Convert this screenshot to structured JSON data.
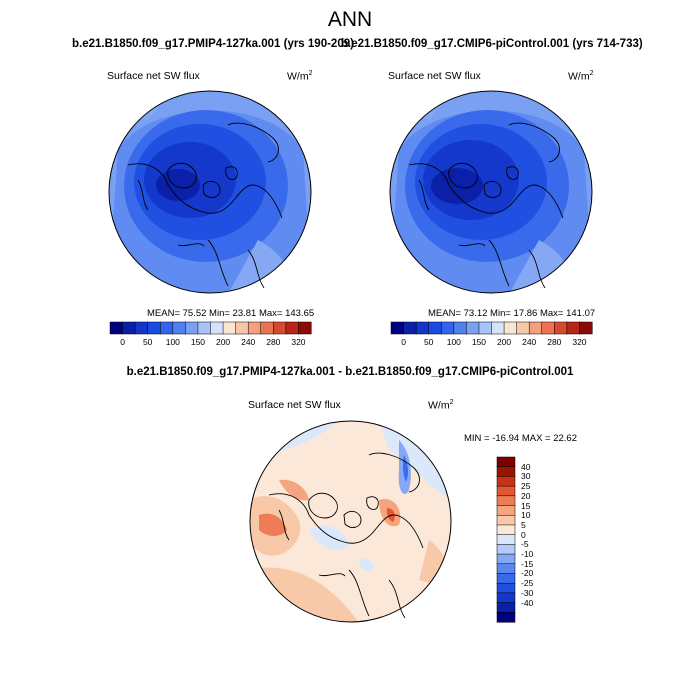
{
  "page": {
    "title": "ANN"
  },
  "panels": {
    "left": {
      "case": "b.e21.B1850.f09_g17.PMIP4-127ka.001 (yrs 190-209)",
      "variable": "Surface net SW flux",
      "units": "W/m",
      "units_sup": "2",
      "stats": "MEAN=  75.52  Min=  23.81  Max= 143.65"
    },
    "right": {
      "case": "b.e21.B1850.f09_g17.CMIP6-piControl.001 (yrs 714-733)",
      "variable": "Surface net SW flux",
      "units": "W/m",
      "units_sup": "2",
      "stats": "MEAN=  73.12  Min=  17.86  Max= 141.07"
    },
    "diff": {
      "case": "b.e21.B1850.f09_g17.PMIP4-127ka.001 - b.e21.B1850.f09_g17.CMIP6-piControl.001",
      "variable": "Surface net SW flux",
      "units": "W/m",
      "units_sup": "2",
      "stats": "MIN = -16.94 MAX =  22.62"
    }
  },
  "colorbars": {
    "abs": {
      "colors": [
        "#000080",
        "#0a1fa8",
        "#1235cc",
        "#1a4be0",
        "#3264ec",
        "#5080f0",
        "#7aa0f4",
        "#a6c2f8",
        "#d4e2fa",
        "#fbe6d4",
        "#f8c6a8",
        "#f4a07c",
        "#ec7252",
        "#d84a30",
        "#b82418",
        "#8a0a06"
      ],
      "tick_labels": [
        "0",
        "50",
        "100",
        "150",
        "200",
        "240",
        "280",
        "320"
      ]
    },
    "diff": {
      "colors": [
        "#000080",
        "#0a20a8",
        "#1438cc",
        "#2050e2",
        "#3a6aec",
        "#5a86f0",
        "#86a8f4",
        "#b4caf8",
        "#dbe7fb",
        "#fce8d8",
        "#f8c9a8",
        "#f4a47e",
        "#ee7c56",
        "#e35630",
        "#c83214",
        "#9a1404",
        "#7a0000"
      ],
      "tick_labels": [
        "40",
        "30",
        "25",
        "20",
        "15",
        "10",
        "5",
        "0",
        "-5",
        "-10",
        "-15",
        "-20",
        "-25",
        "-30",
        "-40"
      ]
    }
  }
}
